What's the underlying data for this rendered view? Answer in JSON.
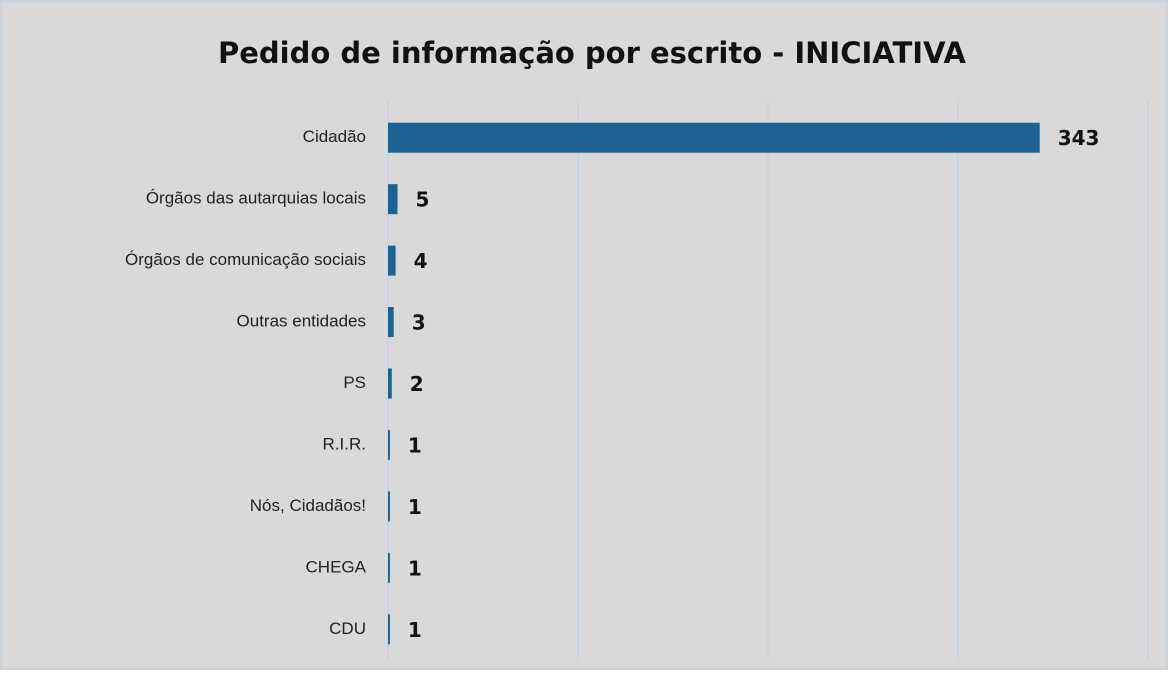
{
  "chart_data": {
    "type": "barh",
    "title": "Pedido de informação por escrito - INICIATIVA",
    "categories": [
      "Cidadão",
      "Órgãos das autarquias locais",
      "Órgãos de comunicação sociais",
      "Outras entidades",
      "PS",
      "R.I.R.",
      "Nós, Cidadãos!",
      "CHEGA",
      "CDU"
    ],
    "values": [
      343,
      5,
      4,
      3,
      2,
      1,
      1,
      1,
      1
    ],
    "color": "#1c6294",
    "xlim": [
      0,
      400
    ],
    "xticks": [
      0,
      100,
      200,
      300,
      400
    ],
    "grid": true
  }
}
